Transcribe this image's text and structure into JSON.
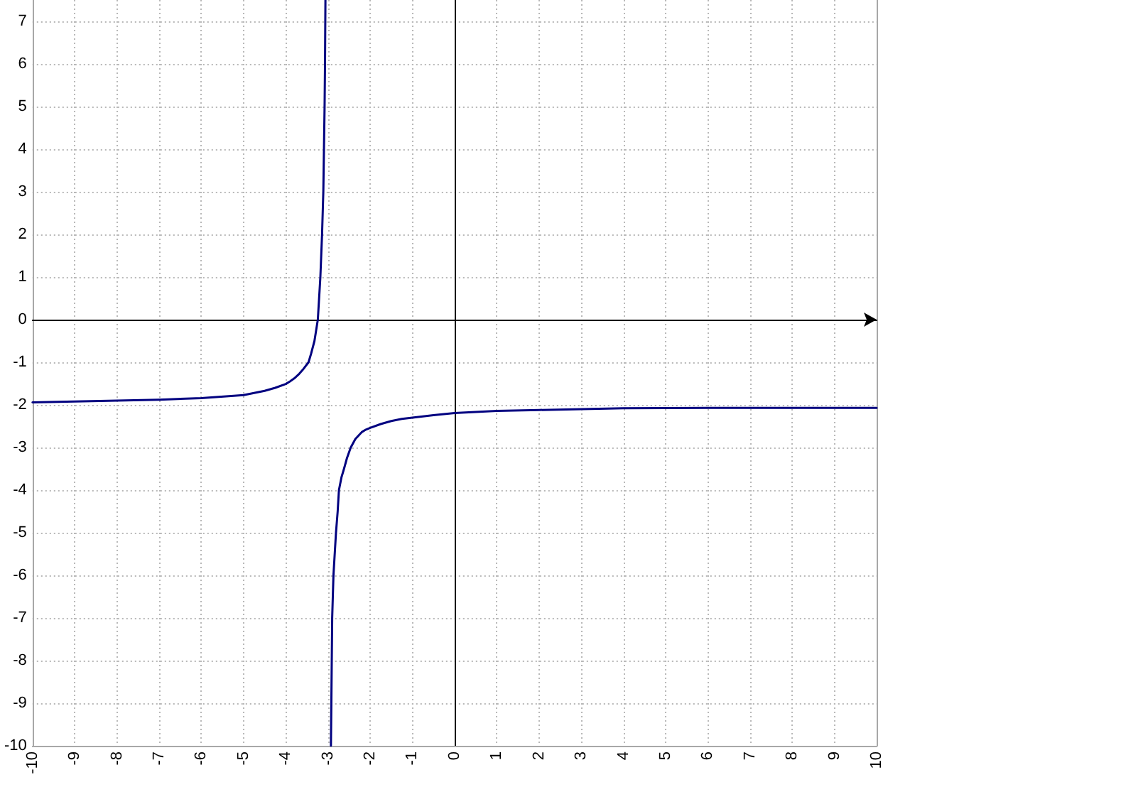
{
  "chart_data": {
    "type": "line",
    "xlim": [
      -10,
      10
    ],
    "xticks": [
      -10,
      -9,
      -8,
      -7,
      -6,
      -5,
      -4,
      -3,
      -2,
      -1,
      0,
      1,
      2,
      3,
      4,
      5,
      6,
      7,
      8,
      9,
      10
    ],
    "ylim": [
      -10,
      7.5
    ],
    "yticks": [
      -10,
      -9,
      -8,
      -7,
      -6,
      -5,
      -4,
      -3,
      -2,
      -1,
      0,
      1,
      2,
      3,
      4,
      5,
      6,
      7
    ],
    "grid": true,
    "marker": "none",
    "line_style": "solid",
    "series": [
      {
        "color": "#000080",
        "x": [
          -10,
          -9,
          -8,
          -7,
          -6,
          -5,
          -4.5,
          -4.25,
          -4,
          -3.9,
          -3.8,
          -3.7,
          -3.6,
          -3.46,
          -3.4,
          -3.32,
          -3.28,
          -3.24,
          -3.18,
          -3.14,
          -3.11,
          -3.08,
          -3.07,
          -3.06
        ],
        "values": [
          -1.94,
          -1.92,
          -1.9,
          -1.88,
          -1.84,
          -1.77,
          -1.67,
          -1.6,
          -1.51,
          -1.45,
          -1.38,
          -1.29,
          -1.18,
          -1,
          -0.8,
          -0.5,
          -0.25,
          0,
          1,
          2,
          3,
          5,
          6,
          7.5
        ]
      },
      {
        "color": "#000080",
        "x": [
          -2.93,
          -2.92,
          -2.9,
          -2.87,
          -2.81,
          -2.77,
          -2.74,
          -2.68,
          -2.62,
          -2.55,
          -2.46,
          -2.35,
          -2.2,
          -2.1,
          -2,
          -1.75,
          -1.5,
          -1.25,
          -1,
          -0.5,
          0,
          1,
          2,
          4,
          6,
          8,
          10
        ],
        "values": [
          -10,
          -9,
          -7,
          -6,
          -5,
          -4.5,
          -4,
          -3.7,
          -3.5,
          -3.25,
          -3,
          -2.8,
          -2.64,
          -2.58,
          -2.54,
          -2.45,
          -2.38,
          -2.33,
          -2.3,
          -2.24,
          -2.19,
          -2.14,
          -2.12,
          -2.08,
          -2.07,
          -2.07,
          -2.07
        ]
      }
    ]
  }
}
